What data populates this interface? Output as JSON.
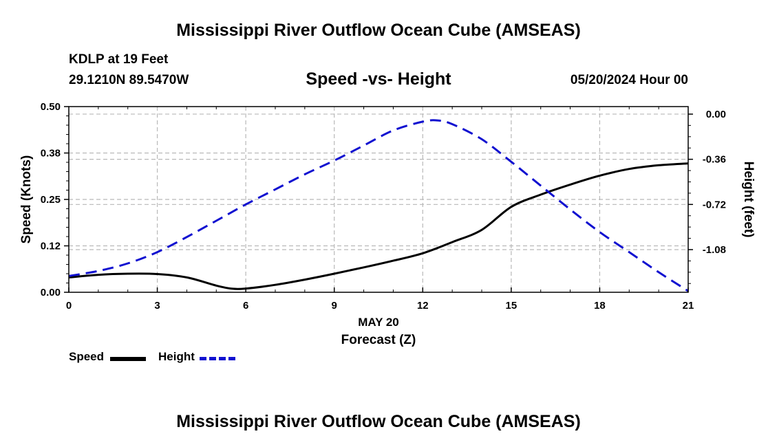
{
  "title": "Mississippi River Outflow Ocean Cube (AMSEAS)",
  "station": "KDLP at 19 Feet",
  "coordinates": "29.1210N  89.5470W",
  "subtitle": "Speed -vs- Height",
  "datetime": "05/20/2024 Hour 00",
  "footer_title": "Mississippi River Outflow Ocean Cube (AMSEAS)",
  "legend": {
    "speed_label": "Speed",
    "height_label": "Height"
  },
  "colors": {
    "speed": "#000000",
    "height": "#1010d0",
    "grid": "#b8b8b8"
  },
  "chart_data": {
    "type": "line",
    "title": "Speed -vs- Height",
    "xlabel": "Forecast (Z)",
    "xdate_label": "MAY 20",
    "ylabel_left": "Speed (Knots)",
    "ylabel_right": "Height (feet)",
    "xlim": [
      0,
      21
    ],
    "ylim_left": [
      0,
      0.5
    ],
    "ylim_right": [
      -1.42,
      0.06
    ],
    "x_ticks": [
      0,
      3,
      6,
      9,
      12,
      15,
      18,
      21
    ],
    "x_tick_labels": [
      "0",
      "3",
      "6",
      "9",
      "12",
      "15",
      "18",
      "21"
    ],
    "y_left_ticks": [
      0.0,
      0.125,
      0.25,
      0.375,
      0.5
    ],
    "y_left_tick_labels": [
      "0.00",
      "0.12",
      "0.25",
      "0.38",
      "0.50"
    ],
    "y_right_ticks": [
      0.0,
      -0.36,
      -0.72,
      -1.08
    ],
    "y_right_tick_labels": [
      "0.00",
      "-0.36",
      "-0.72",
      "-1.08"
    ],
    "grid": true,
    "series": [
      {
        "name": "Speed",
        "axis": "left",
        "style": "solid",
        "x": [
          0,
          1,
          2,
          3,
          4,
          5,
          5.5,
          6,
          7,
          8,
          9,
          10,
          11,
          12,
          13,
          14,
          15,
          16,
          17,
          18,
          19,
          20,
          21
        ],
        "values": [
          0.04,
          0.047,
          0.05,
          0.049,
          0.04,
          0.018,
          0.01,
          0.01,
          0.02,
          0.034,
          0.05,
          0.067,
          0.085,
          0.105,
          0.135,
          0.168,
          0.23,
          0.263,
          0.29,
          0.314,
          0.332,
          0.342,
          0.347
        ]
      },
      {
        "name": "Height",
        "axis": "right",
        "style": "dashed",
        "x": [
          0,
          1,
          2,
          3,
          4,
          5,
          6,
          7,
          8,
          9,
          10,
          11,
          12,
          12.5,
          13,
          14,
          15,
          16,
          17,
          18,
          19,
          20,
          21
        ],
        "values": [
          -1.29,
          -1.25,
          -1.19,
          -1.1,
          -0.98,
          -0.85,
          -0.72,
          -0.6,
          -0.48,
          -0.37,
          -0.25,
          -0.13,
          -0.06,
          -0.05,
          -0.08,
          -0.2,
          -0.38,
          -0.57,
          -0.76,
          -0.94,
          -1.1,
          -1.26,
          -1.41
        ]
      }
    ]
  }
}
